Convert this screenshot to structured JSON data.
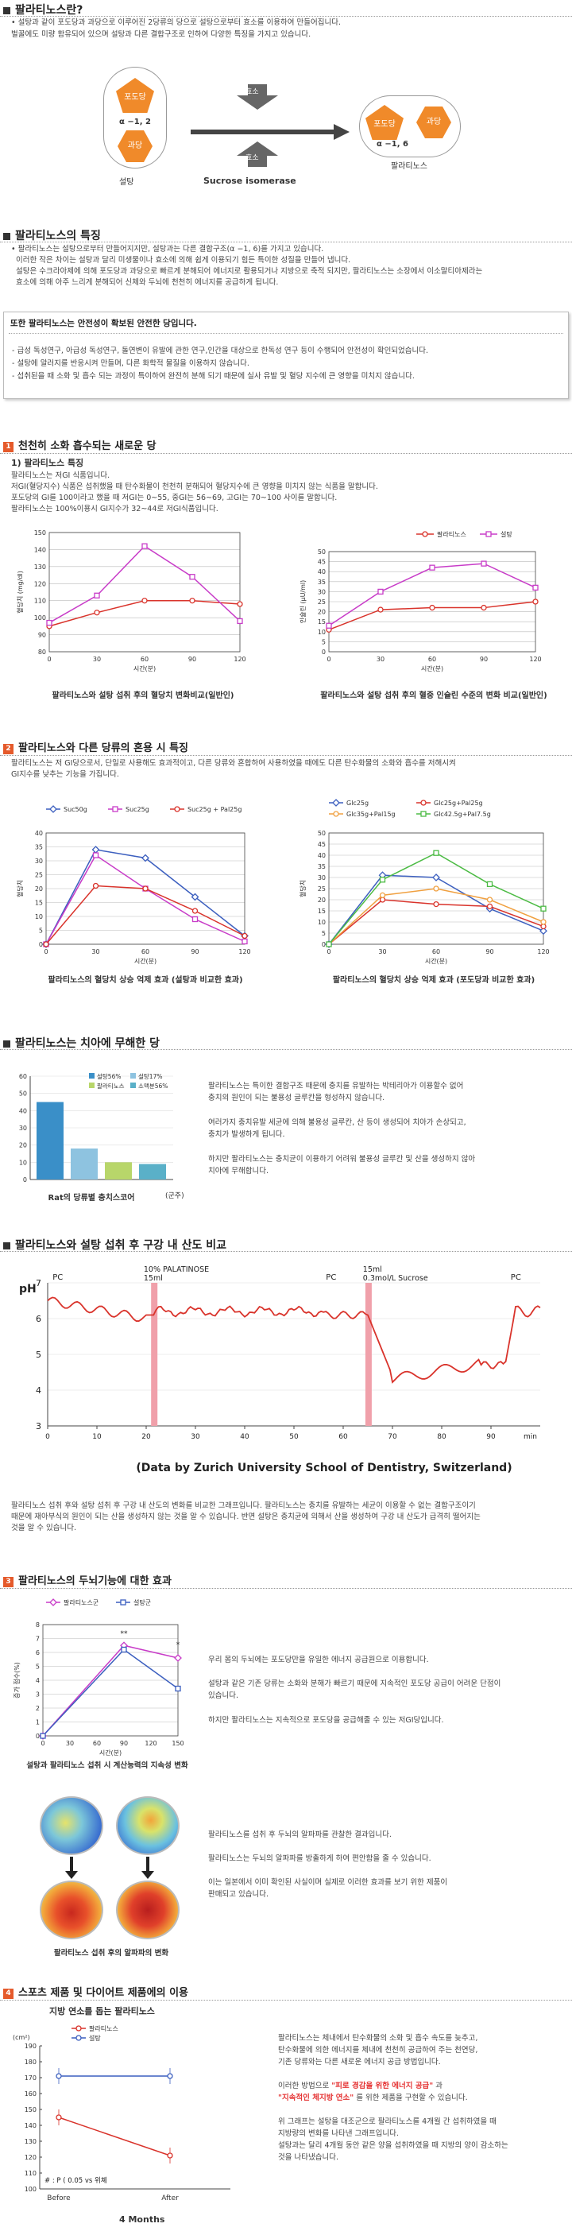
{
  "s1": {
    "title": "팔라티노스란?",
    "p1": "• 설탕과 같이 포도당과 과당으로 이루어진 2당류의 당으로 설탕으로부터 효소를 이용하여 만들어집니다.",
    "p2": "벌꿀에도 미량 함유되어 있으며 설탕과 다른 결합구조로 인하여 다양한 특징을 가지고 있습니다.",
    "glucose": "포도당",
    "fructose": "과당",
    "bond1": "α −1, 2",
    "bond2": "α −1, 6",
    "sugar": "설탕",
    "palatinose": "팔라티노스",
    "enzyme": "효소",
    "enzyme_name": "Sucrose isomerase"
  },
  "s2": {
    "title": "팔라티노스의 특징",
    "p1": "• 팔라티노스는 설탕으로부터 만들어지지만, 설탕과는 다른 결합구조(α −1, 6)를 가지고 있습니다.",
    "p2": "이러한 작은 차이는 설탕과 달리 미생물이나 효소에 의해 쉽게 이용되기 힘든 특이한 성질을 만들어 냅니다.",
    "p3": "설탕은 수크라아제에 의해 포도당과 과당으로 빠르게 분해되어 에너지로 활용되거나 지방으로 축적 되지만, 팔라티노스는 소장에서 이소말티아제라는",
    "p4": "효소에 의해 아주 느리게 분해되어 신체와 두뇌에 천천히 에너지를 공급하게 됩니다.",
    "safe_title": "또한 팔라티노스는 안전성이 확보된 안전한 당입니다.",
    "safe1": "- 급성 독성연구, 아급성 독성연구, 돌연변이 유발에 관한 연구,인간을 대상으로 한독성 연구 등이 수행되어 안전성이 확인되었습니다.",
    "safe2": "- 설탕에 알러지를 반응시켜 만들며, 다른 화학적 물질을 이용하지 않습니다.",
    "safe3": "- 섭취된을 때 소화 및 흡수 되는 과정이 특이하여 완전히 분해 되기 때문에 실사 유발 및 혈당 지수에 큰 영향을 미치지 않습니다."
  },
  "s3": {
    "num": "1",
    "title": "천천히 소화 흡수되는 새로운 당",
    "sub": "1) 팔라티노스 특징",
    "p1": "팔라티노스는 저GI 식품입니다.",
    "p2": "저GI(혈당지수) 식품은 섭취했을 때 탄수화물이 천천히 분해되어 혈당지수에 큰 영향을 미치지 않는 식품을 말합니다.",
    "p3": "포도당의 GI를 100이라고 했을 때 저GI는 0~55, 중GI는 56~69, 고GI는 70~100 사이를 말합니다.",
    "p4": "팔라티노스는 100%이용시 GI지수가 32~44로 저GI식품입니다.",
    "cap1": "팔라티노스와 설탕 섭취 후의 혈당치 변화비교(일반인)",
    "cap2": "팔라티노스와 설탕 섭취 후의 혈중 인슐린 수준의 변화 비교(일반인)"
  },
  "chart1": {
    "type": "line",
    "ylabel": "혈당치 (mg/dl)",
    "xlabel": "시간(분)",
    "x": [
      0,
      30,
      60,
      90,
      120
    ],
    "yticks": [
      80,
      90,
      100,
      110,
      120,
      130,
      140,
      150
    ],
    "ylim": [
      80,
      150
    ],
    "series": [
      {
        "values": [
          95,
          103,
          110,
          110,
          108
        ],
        "color": "#d9332b"
      },
      {
        "values": [
          97,
          113,
          142,
          124,
          98
        ],
        "color": "#c83cc8"
      }
    ]
  },
  "chart2": {
    "type": "line",
    "ylabel": "인슐린 (μU/ml)",
    "xlabel": "시간(분)",
    "x": [
      0,
      30,
      60,
      90,
      120
    ],
    "yticks": [
      0,
      5,
      10,
      15,
      20,
      25,
      30,
      35,
      40,
      45,
      50
    ],
    "ylim": [
      0,
      50
    ],
    "legend": [
      "팔라티노스",
      "설탕"
    ],
    "series": [
      {
        "values": [
          11,
          21,
          22,
          22,
          25
        ],
        "color": "#d9332b"
      },
      {
        "values": [
          13,
          30,
          42,
          44,
          32
        ],
        "color": "#c83cc8"
      }
    ]
  },
  "s4": {
    "num": "2",
    "title": "팔라티노스와 다른 당류의 혼용 시 특징",
    "p1": "팔라티노스는 저 GI당으로서, 단일로 사용해도 효과적이고, 다른 당류와 혼합하여 사용하였을 때에도 다른 탄수화물의 소화와 흡수를 저해시켜",
    "p2": "GI지수를 낮추는 기능을 가집니다.",
    "cap1": "팔라티노스의 혈당치 상승 억제 효과 (설탕과 비교한 효과)",
    "cap2": "팔라티노스의 혈당치 상승 억제 효과 (포도당과 비교한 효과)"
  },
  "chart3": {
    "type": "line",
    "ylabel": "혈당치",
    "xlabel": "시간(분)",
    "x": [
      0,
      30,
      60,
      90,
      120
    ],
    "yticks": [
      0,
      5,
      10,
      15,
      20,
      25,
      30,
      35,
      40
    ],
    "ylim": [
      0,
      40
    ],
    "legend": [
      "Suc50g",
      "Suc25g",
      "Suc25g + Pal25g"
    ],
    "series": [
      {
        "name": "Suc50g",
        "values": [
          0,
          34,
          31,
          17,
          3
        ],
        "color": "#3c5fbf"
      },
      {
        "name": "Suc25g",
        "values": [
          0,
          32,
          20,
          9,
          1
        ],
        "color": "#c83cc8"
      },
      {
        "name": "Suc25g + Pal25g",
        "values": [
          0,
          21,
          20,
          12,
          3
        ],
        "color": "#d9332b"
      }
    ]
  },
  "chart4": {
    "type": "line",
    "ylabel": "혈당치",
    "xlabel": "시간(분)",
    "x": [
      0,
      30,
      60,
      90,
      120
    ],
    "yticks": [
      0,
      5,
      10,
      15,
      20,
      25,
      30,
      35,
      40,
      45,
      50
    ],
    "ylim": [
      0,
      50
    ],
    "legend": [
      "Glc25g",
      "Glc25g+Pal25g",
      "Glc35g+Pal15g",
      "Glc42.5g+Pal7.5g"
    ],
    "series": [
      {
        "name": "Glc25g",
        "values": [
          0,
          31,
          30,
          16,
          6
        ],
        "color": "#3c5fbf"
      },
      {
        "name": "Glc25g+Pal25g",
        "values": [
          0,
          20,
          18,
          17,
          8
        ],
        "color": "#d9332b"
      },
      {
        "name": "Glc35g+Pal15g",
        "values": [
          0,
          22,
          25,
          20,
          10
        ],
        "color": "#f0a040"
      },
      {
        "name": "Glc42.5g+Pal7.5g",
        "values": [
          0,
          29,
          41,
          27,
          16
        ],
        "color": "#4cbb44"
      }
    ]
  },
  "s5": {
    "title": "팔라티노스는 치아에 무해한 당",
    "p1": "팔라티노스는 특이한 결합구조 때문에 충치를 유발하는 박테리아가 이용할수 없어",
    "p2": "충치의 원인이 되는 불용성 글루칸을 형성하지 않습니다.",
    "p3": "여러가지 충치유발 세균에 의해 불용성 글루칸, 산 등이 생성되어 치아가 손상되고,",
    "p4": "충치가 발생하게 됩니다.",
    "p5": "하지만 팔라티노스는 충치균이 이용하기 어려워 불용성 글루칸 및 산을 생성하지 않아",
    "p6": "치아에 무해합니다.",
    "cap": "Rat의 당류별 충치스코어",
    "unit": "(군주)"
  },
  "chart5": {
    "type": "bar",
    "yticks": [
      0,
      10,
      20,
      30,
      40,
      50,
      60
    ],
    "ylim": [
      0,
      60
    ],
    "legend": [
      "설탕56%",
      "설탕17%",
      "팔라티노스",
      "소맥분56%"
    ],
    "values": [
      45,
      18,
      10,
      9
    ],
    "colors": [
      "#3a8fc8",
      "#8ec3e0",
      "#b8d66a",
      "#5ab0c8"
    ]
  },
  "s6": {
    "title": "팔라티노스와 설탕 섭취 후 구강 내 산도 비교",
    "ylabel": "pH",
    "pc": "PC",
    "ann1a": "10% PALATINOSE",
    "ann1b": "15ml",
    "ann2a": "15ml",
    "ann2b": "0.3mol/L Sucrose",
    "xunit": "min",
    "source": "(Data by Zurich University School of Dentistry, Switzerland)",
    "p1": "팔라티노스 섭취 후와 설탕 섭취 후 구강 내 산도의 변화를 비교한 그래프입니다. 팔라티노스는 충치를 유발하는 세균이 이용할 수 없는 결합구조이기",
    "p2": "때문에 재아부식의 원인이 되는 산을 생성하지 않는 것을 알 수 있습니다. 반면 설탕은 충치균에 의해서 산을 생성하여 구강 내 산도가 급격히 떨어지는",
    "p3": "것을 알 수 있습니다."
  },
  "chart6": {
    "type": "line",
    "ylim": [
      3,
      7
    ],
    "yticks": [
      3,
      4,
      5,
      6,
      7
    ],
    "xticks": [
      0,
      10,
      20,
      30,
      40,
      50,
      60,
      70,
      80,
      90
    ],
    "xlim": [
      0,
      100
    ]
  },
  "s7": {
    "num": "3",
    "title": "팔라티노스의 두뇌기능에 대한 효과",
    "p1": "우리 몸의 두뇌에는 포도당만을 유일한 에너지 공급원으로 이용합니다.",
    "p2": "설탕과 같은 기존 당류는 소화와 분해가 빠르기 때문에 지속적인 포도당 공급이 어려운 단점이",
    "p3": "있습니다.",
    "p4": "하지만 팔라티노스는 지속적으로 포도당을 공급해줄 수 있는 저GI당입니다.",
    "cap1": "설탕과 팔라티노스 섭취 시 계산능력의 지속성 변화",
    "b1": "팔라티노스를 섭취 후 두뇌의 알파파를 관찰한 결과입니다.",
    "b2": "팔라티노스는 두뇌의 알파파를 방출하게 하여 편안함을 줄 수 있습니다.",
    "b3": "이는 일본에서 이미 확인된 사실이며 실제로 이러한 효과를 보기 위한 제품이",
    "b4": "판매되고 있습니다.",
    "cap2": "팔라티노스 섭취 후의 알파파의 변화"
  },
  "chart7": {
    "type": "line",
    "ylabel": "증가 점수(%)",
    "xlabel": "시간(분)",
    "x": [
      0,
      30,
      60,
      90,
      120,
      150
    ],
    "yticks": [
      0,
      1,
      2,
      3,
      4,
      5,
      6,
      7,
      8
    ],
    "ylim": [
      0,
      8
    ],
    "legend": [
      "팔라티노스군",
      "설탕군"
    ],
    "marks": [
      "**",
      "*"
    ],
    "series": [
      {
        "name": "팔라티노스군",
        "x": [
          0,
          90,
          150
        ],
        "values": [
          0,
          6.5,
          5.6
        ],
        "color": "#c83cc8"
      },
      {
        "name": "설탕군",
        "x": [
          0,
          90,
          150
        ],
        "values": [
          0,
          6.2,
          3.4
        ],
        "color": "#3c5fbf"
      }
    ]
  },
  "s8": {
    "num": "4",
    "title": "스포츠 제품 및 다이어트 제품에의 이용",
    "sub": "지방 연소를 돕는 팔라티노스",
    "p1": "팔라티노스는 체내에서 탄수화물의 소화 및 흡수 속도를 늦추고,",
    "p2": "탄수화물에 의한 에너지를 체내에 천천히 공급하여 주는 천연당,",
    "p3": "기존 당류와는 다른 새로운 에너지 공급 방법입니다.",
    "p4a": "이러한 방법으로 ",
    "p4b": "\"피로 경감을 위한 에너지 공급\"",
    "p4c": " 과",
    "p5a": "",
    "p5b": "\"지속적인 체지방 연소\"",
    "p5c": " 를 위한 제품을 구현할 수 있습니다.",
    "p6": "위 그래프는 설탕을 대조군으로 팔라티노스를 4개월 간 섭취하였을 때",
    "p7": "지방량의 변화를 나타낸 그래프입니다.",
    "p8": "설탕과는 달리 4개월 동안 같은 양을 섭취하였을 때 지방의 양이 감소하는",
    "p9": "것을 나타냈습니다.",
    "period": "4 Months",
    "note": "# : P ( 0.05 vs 위쳬"
  },
  "chart8": {
    "type": "line",
    "ylabel": "(cm²)",
    "x": [
      "Before",
      "After"
    ],
    "yticks": [
      100,
      110,
      120,
      130,
      140,
      150,
      160,
      170,
      180,
      190
    ],
    "ylim": [
      100,
      190
    ],
    "legend": [
      "팔라티노스",
      "설탕"
    ],
    "series": [
      {
        "name": "팔라티노스",
        "values": [
          145,
          121
        ],
        "color": "#d9332b"
      },
      {
        "name": "설탕",
        "values": [
          171,
          171
        ],
        "color": "#3c5fbf"
      }
    ]
  }
}
